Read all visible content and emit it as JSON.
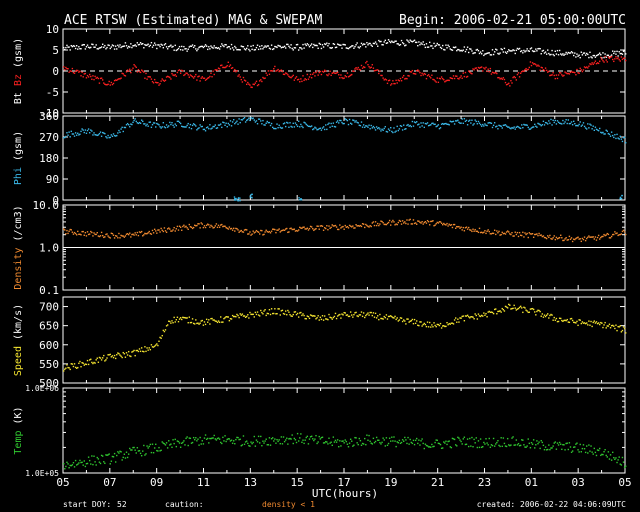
{
  "chart_data": {
    "type": "scatter",
    "title": "ACE RTSW (Estimated) MAG & SWEPAM",
    "begin_label": "Begin: 2006-02-21 05:00:00UTC",
    "xlabel": "UTC(hours)",
    "x_tick_labels": [
      "05",
      "07",
      "09",
      "11",
      "13",
      "15",
      "17",
      "19",
      "21",
      "23",
      "01",
      "03",
      "05"
    ],
    "xlim": [
      0,
      24
    ],
    "footer": {
      "start_doy_label": "start DOY:",
      "start_doy_value": "52",
      "caution_label": "caution:",
      "caution_value": "density < 1",
      "created": "created: 2006-02-22 04:06:09UTC"
    },
    "colors": {
      "bt": "#ffffff",
      "bz": "#ff2020",
      "phi": "#3ab8e8",
      "density": "#f08a30",
      "speed": "#f4e430",
      "temp": "#30c830",
      "caution": "#f08a30"
    },
    "panels": [
      {
        "id": "mag",
        "ylabel_parts": [
          {
            "text": "Bt",
            "color": "#ffffff"
          },
          {
            "text": " Bz",
            "color": "#ff2020"
          },
          {
            "text": " (gsm)",
            "color": "#ffffff"
          }
        ],
        "scale": "linear",
        "ylim": [
          -10,
          10
        ],
        "y_ticks": [
          -10,
          -5,
          0,
          5,
          10
        ],
        "zero_dash": true,
        "series": [
          {
            "name": "Bt",
            "color": "#ffffff",
            "x": [
              0,
              1,
              2,
              3,
              4,
              5,
              6,
              7,
              8,
              9,
              10,
              11,
              12,
              13,
              14,
              15,
              16,
              17,
              18,
              19,
              20,
              21,
              22,
              23,
              24
            ],
            "y": [
              5.5,
              6,
              5.8,
              6.5,
              6.2,
              5.5,
              5.8,
              6,
              5.5,
              6,
              5.8,
              6.2,
              6,
              6.5,
              7,
              6.8,
              6,
              5.5,
              4.5,
              5,
              5,
              4.5,
              4,
              4,
              4.5
            ]
          },
          {
            "name": "Bz",
            "color": "#ff2020",
            "x": [
              0,
              1,
              2,
              3,
              4,
              5,
              6,
              7,
              8,
              9,
              10,
              11,
              12,
              13,
              14,
              15,
              16,
              17,
              18,
              19,
              20,
              21,
              22,
              23,
              24
            ],
            "y": [
              1,
              -1,
              -3,
              1,
              -3,
              0,
              -2,
              2,
              -4,
              1,
              -2,
              0,
              -1,
              2,
              -3,
              0,
              -2,
              -1,
              1,
              -3,
              2,
              -1,
              0,
              3,
              3
            ]
          }
        ]
      },
      {
        "id": "phi",
        "ylabel_parts": [
          {
            "text": "Phi",
            "color": "#3ab8e8"
          },
          {
            "text": " (gsm)",
            "color": "#ffffff"
          }
        ],
        "scale": "linear",
        "ylim": [
          0,
          360
        ],
        "y_ticks": [
          0,
          90,
          180,
          270,
          360
        ],
        "series": [
          {
            "name": "Phi",
            "color": "#3ab8e8",
            "x": [
              0,
              1,
              2,
              3,
              4,
              5,
              6,
              7,
              8,
              9,
              10,
              11,
              12,
              13,
              14,
              15,
              16,
              17,
              18,
              19,
              20,
              21,
              22,
              23,
              24
            ],
            "y": [
              280,
              300,
              270,
              340,
              320,
              330,
              310,
              330,
              350,
              320,
              330,
              310,
              340,
              320,
              300,
              330,
              320,
              340,
              330,
              310,
              320,
              340,
              330,
              300,
              260
            ]
          },
          {
            "name": "Phi",
            "color": "#3ab8e8",
            "x": [
              7.3,
              7.5,
              8.0,
              10.1,
              23.8
            ],
            "y": [
              10,
              5,
              20,
              5,
              15
            ]
          }
        ]
      },
      {
        "id": "density",
        "ylabel_parts": [
          {
            "text": "Density",
            "color": "#f08a30"
          },
          {
            "text": " (/cm3)",
            "color": "#ffffff"
          }
        ],
        "scale": "log",
        "ylim": [
          0.1,
          10
        ],
        "y_ticks": [
          0.1,
          1.0,
          10.0
        ],
        "y_tick_labels": [
          "0.1",
          "1.0",
          "10.0"
        ],
        "ref_lines": [
          1.0,
          10.0
        ],
        "series": [
          {
            "name": "Density",
            "color": "#f08a30",
            "x": [
              0,
              1,
              2,
              3,
              4,
              5,
              6,
              7,
              8,
              9,
              10,
              11,
              12,
              13,
              14,
              15,
              16,
              17,
              18,
              19,
              20,
              21,
              22,
              23,
              24
            ],
            "y": [
              2.5,
              2.2,
              2.0,
              2.0,
              2.5,
              3.0,
              3.5,
              3.2,
              2.2,
              2.5,
              2.8,
              3.0,
              3.2,
              3.5,
              4.0,
              4.2,
              3.8,
              3.0,
              2.5,
              2.2,
              2.0,
              1.8,
              1.6,
              1.8,
              2.4
            ]
          }
        ]
      },
      {
        "id": "speed",
        "ylabel_parts": [
          {
            "text": "Speed",
            "color": "#f4e430"
          },
          {
            "text": " (km/s)",
            "color": "#ffffff"
          }
        ],
        "scale": "linear",
        "ylim": [
          500,
          725
        ],
        "y_ticks": [
          500,
          550,
          600,
          650,
          700
        ],
        "series": [
          {
            "name": "Speed",
            "color": "#f4e430",
            "x": [
              0,
              1,
              2,
              3,
              4,
              4.5,
              5,
              6,
              7,
              8,
              9,
              10,
              11,
              12,
              13,
              14,
              15,
              16,
              17,
              18,
              19,
              20,
              21,
              22,
              23,
              24
            ],
            "y": [
              540,
              555,
              570,
              580,
              600,
              665,
              670,
              660,
              670,
              680,
              690,
              680,
              670,
              680,
              680,
              670,
              660,
              650,
              670,
              680,
              700,
              690,
              670,
              660,
              655,
              640
            ]
          }
        ]
      },
      {
        "id": "temp",
        "ylabel_parts": [
          {
            "text": "Temp",
            "color": "#30c830"
          },
          {
            "text": " (K)",
            "color": "#ffffff"
          }
        ],
        "scale": "log",
        "ylim": [
          100000,
          1000000
        ],
        "y_ticks": [
          100000,
          1000000
        ],
        "y_tick_labels": [
          "1.0E+05",
          "1.0E+06"
        ],
        "series": [
          {
            "name": "Temp",
            "color": "#30c830",
            "x": [
              0,
              1,
              2,
              3,
              4,
              5,
              6,
              7,
              8,
              9,
              10,
              11,
              12,
              13,
              14,
              15,
              16,
              17,
              18,
              19,
              20,
              21,
              22,
              23,
              24
            ],
            "y": [
              125000,
              140000,
              150000,
              180000,
              200000,
              230000,
              250000,
              250000,
              240000,
              250000,
              260000,
              240000,
              230000,
              250000,
              240000,
              230000,
              220000,
              240000,
              230000,
              240000,
              220000,
              210000,
              200000,
              180000,
              130000
            ]
          }
        ]
      }
    ]
  }
}
